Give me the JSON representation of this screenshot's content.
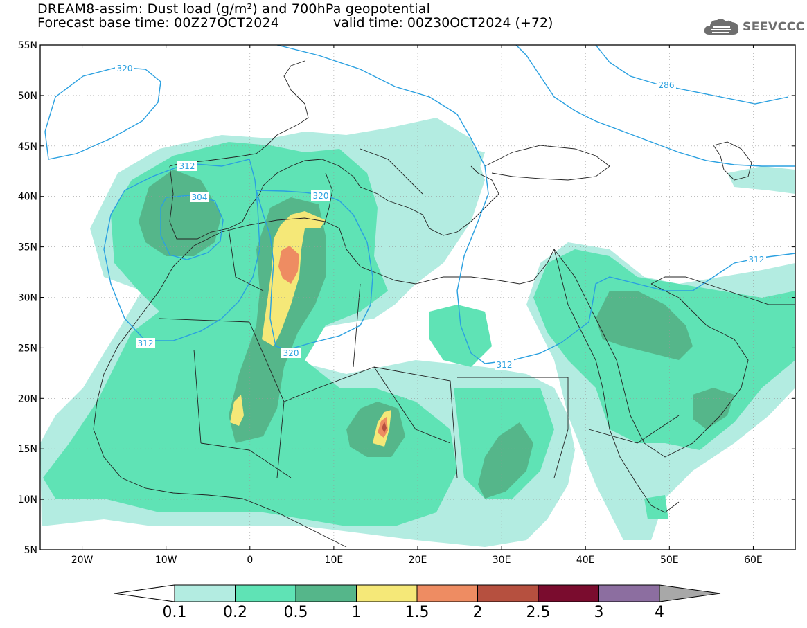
{
  "title": {
    "line1": "DREAM8-assim: Dust load (g/m²) and 700hPa geopotential",
    "line2": "Forecast base time: 00Z27OCT2024",
    "valid": "valid time: 00Z30OCT2024 (+72)"
  },
  "logo": {
    "icon": "cloud-icon",
    "text": "SEEVCCC"
  },
  "map": {
    "lon_range": [
      -25,
      65
    ],
    "lat_range": [
      5,
      55
    ],
    "lat_labels": [
      "55N",
      "50N",
      "45N",
      "40N",
      "35N",
      "30N",
      "25N",
      "20N",
      "15N",
      "10N",
      "5N"
    ],
    "lon_labels": [
      "20W",
      "10W",
      "0",
      "10E",
      "20E",
      "30E",
      "40E",
      "50E",
      "60E"
    ],
    "contour_labels": [
      "320",
      "286",
      "312",
      "304",
      "320",
      "312",
      "320",
      "312",
      "312"
    ],
    "contour_color": "#2aa0e0"
  },
  "colorbar": {
    "labels": [
      "0.1",
      "0.2",
      "0.5",
      "1",
      "1.5",
      "2",
      "2.5",
      "3",
      "4"
    ],
    "colors": [
      "#b3ece1",
      "#5fe3b5",
      "#55b68a",
      "#f5e878",
      "#ee8c62",
      "#b6503f",
      "#7a0c2e",
      "#8c6ea0"
    ],
    "over_color": "#a8a8a8"
  }
}
